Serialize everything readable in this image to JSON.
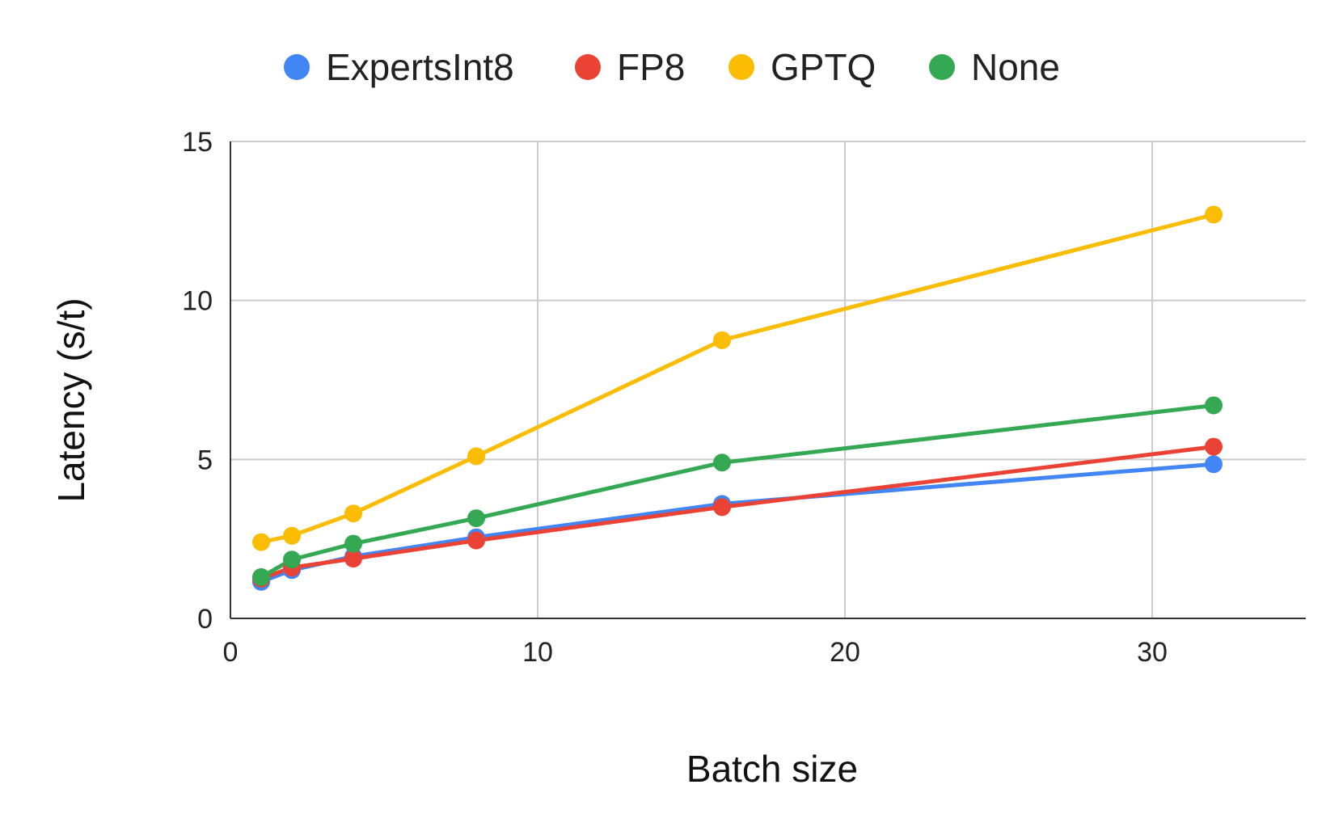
{
  "chart_data": {
    "type": "line",
    "title": "",
    "xlabel": "Batch size",
    "ylabel": "Latency (s/t)",
    "xlim": [
      0,
      35
    ],
    "ylim": [
      0,
      15
    ],
    "x_ticks": [
      0,
      10,
      20,
      30
    ],
    "y_ticks": [
      0,
      5,
      10,
      15
    ],
    "x_tick_labels": [
      "0",
      "10",
      "20",
      "30"
    ],
    "y_tick_labels": [
      "0",
      "5",
      "10",
      "15"
    ],
    "grid": true,
    "legend_position": "top",
    "x": [
      1,
      2,
      4,
      8,
      16,
      32
    ],
    "series": [
      {
        "name": "ExpertsInt8",
        "color": "#4285F4",
        "values": [
          1.15,
          1.52,
          1.95,
          2.55,
          3.6,
          4.85
        ]
      },
      {
        "name": "FP8",
        "color": "#EA4335",
        "values": [
          1.25,
          1.6,
          1.88,
          2.45,
          3.5,
          5.4
        ]
      },
      {
        "name": "GPTQ",
        "color": "#FBBC04",
        "values": [
          2.4,
          2.6,
          3.3,
          5.1,
          8.75,
          12.7
        ]
      },
      {
        "name": "None",
        "color": "#34A853",
        "values": [
          1.3,
          1.85,
          2.35,
          3.15,
          4.9,
          6.7
        ]
      }
    ]
  }
}
